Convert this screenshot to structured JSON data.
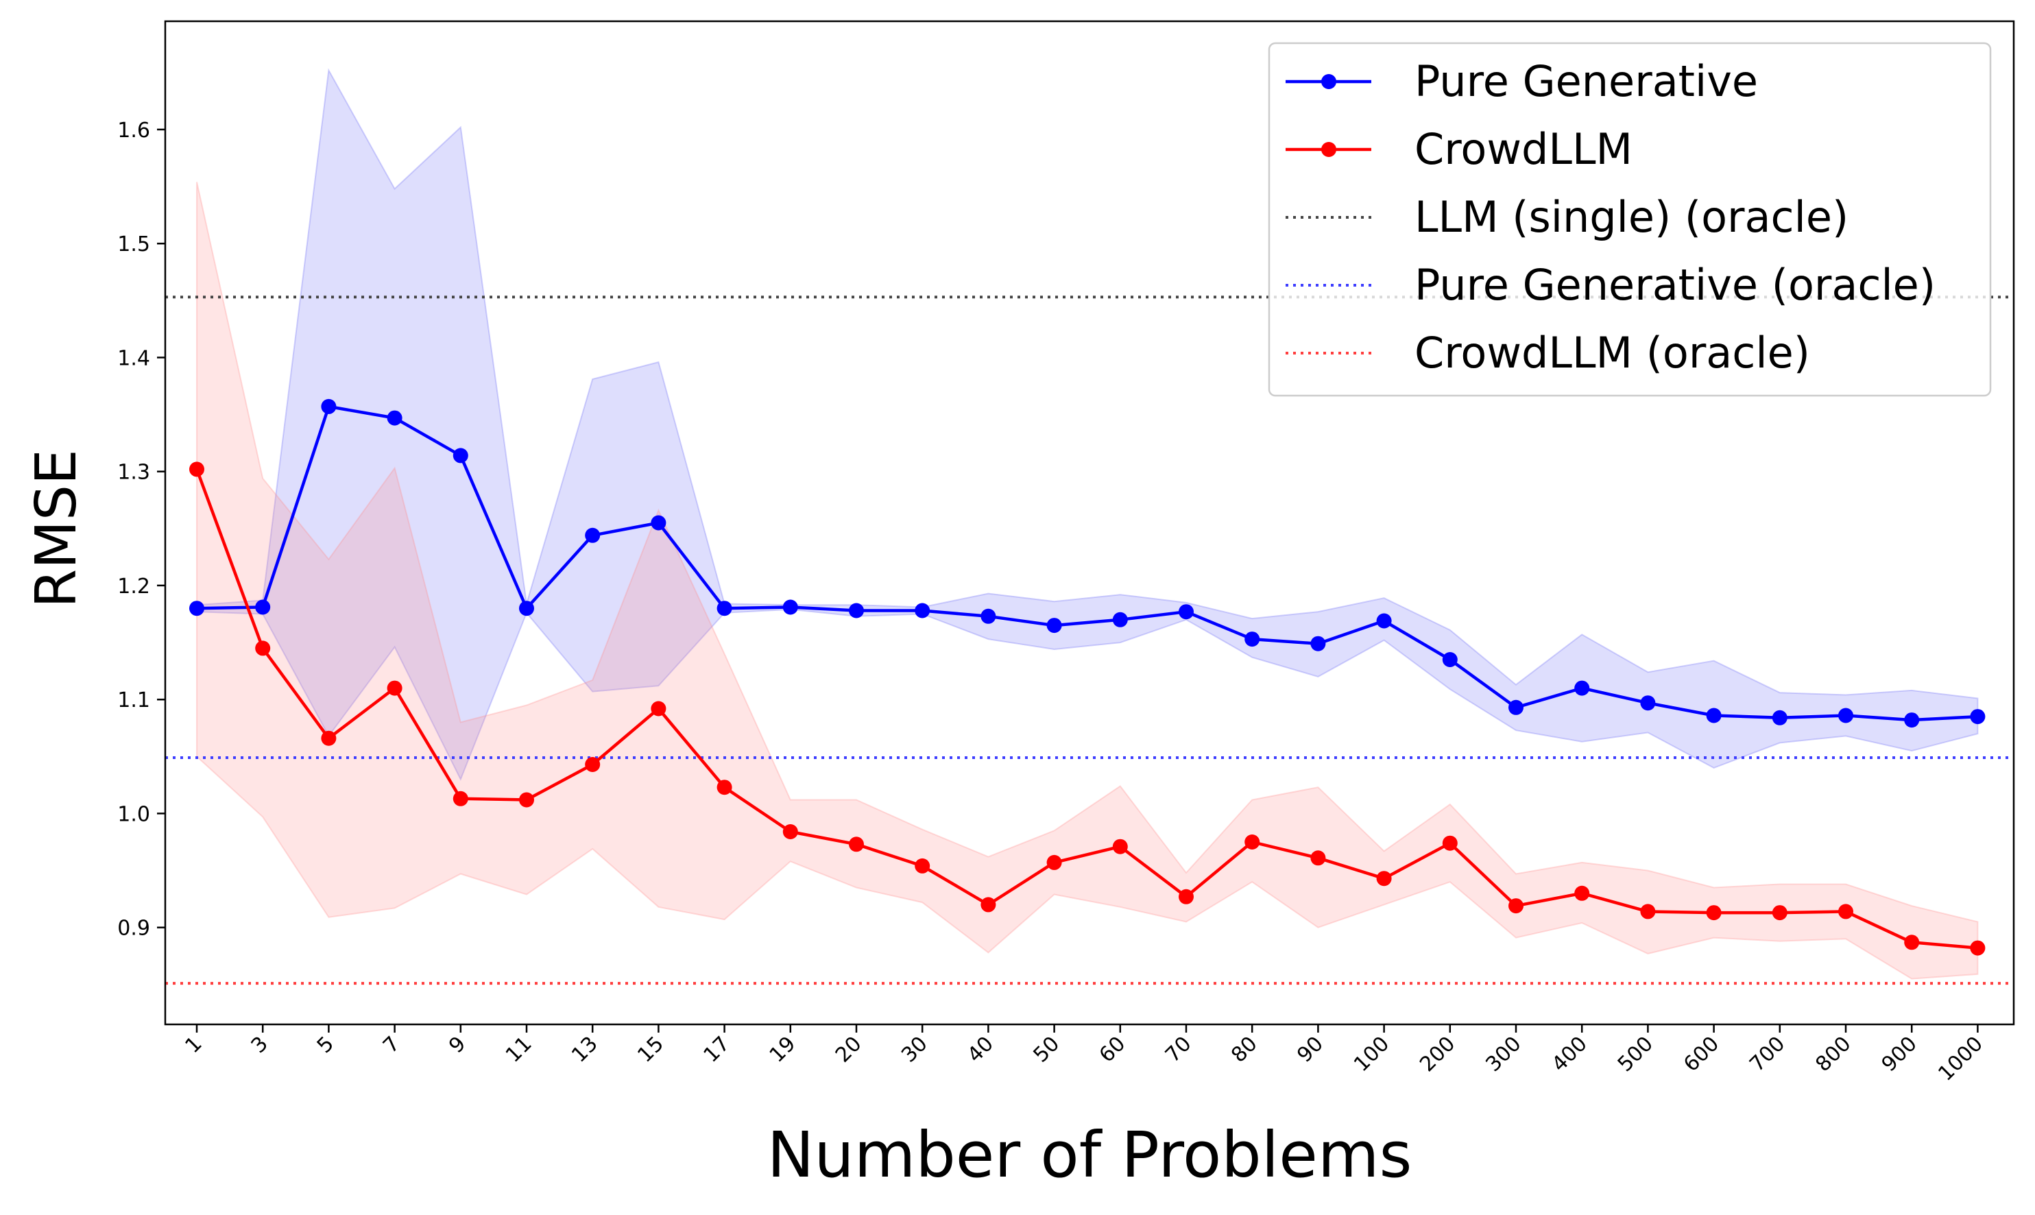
{
  "chart_data": {
    "type": "line",
    "title": "",
    "xlabel": "Number of Problems",
    "ylabel": "RMSE",
    "ylim": [
      0.815,
      1.695
    ],
    "yticks": [
      0.9,
      1.0,
      1.1,
      1.2,
      1.3,
      1.4,
      1.5,
      1.6
    ],
    "ytick_labels": [
      "0.9",
      "1.0",
      "1.1",
      "1.2",
      "1.3",
      "1.4",
      "1.5",
      "1.6"
    ],
    "categories": [
      "1",
      "3",
      "5",
      "7",
      "9",
      "11",
      "13",
      "15",
      "17",
      "19",
      "20",
      "30",
      "40",
      "50",
      "60",
      "70",
      "80",
      "90",
      "100",
      "200",
      "300",
      "400",
      "500",
      "600",
      "700",
      "800",
      "900",
      "1000"
    ],
    "grid": false,
    "legend_position": "top-right",
    "series": [
      {
        "name": "Pure Generative",
        "color": "#0000ff",
        "band_color": "#6a6af5",
        "values": [
          1.18,
          1.181,
          1.357,
          1.347,
          1.314,
          1.18,
          1.244,
          1.255,
          1.18,
          1.181,
          1.178,
          1.178,
          1.173,
          1.165,
          1.17,
          1.177,
          1.153,
          1.149,
          1.169,
          1.135,
          1.093,
          1.11,
          1.097,
          1.086,
          1.084,
          1.086,
          1.082,
          1.085
        ],
        "lower": [
          1.177,
          1.175,
          1.068,
          1.146,
          1.03,
          1.176,
          1.107,
          1.112,
          1.176,
          1.179,
          1.173,
          1.175,
          1.153,
          1.144,
          1.15,
          1.17,
          1.137,
          1.12,
          1.152,
          1.109,
          1.073,
          1.063,
          1.071,
          1.04,
          1.062,
          1.068,
          1.055,
          1.07
        ],
        "upper": [
          1.183,
          1.187,
          1.652,
          1.548,
          1.602,
          1.184,
          1.381,
          1.396,
          1.184,
          1.183,
          1.183,
          1.181,
          1.193,
          1.186,
          1.192,
          1.185,
          1.171,
          1.177,
          1.189,
          1.161,
          1.113,
          1.157,
          1.124,
          1.134,
          1.106,
          1.104,
          1.108,
          1.101
        ]
      },
      {
        "name": "CrowdLLM",
        "color": "#ff0000",
        "band_color": "#ff8a8a",
        "values": [
          1.302,
          1.145,
          1.066,
          1.11,
          1.013,
          1.012,
          1.043,
          1.092,
          1.023,
          0.984,
          0.973,
          0.954,
          0.92,
          0.957,
          0.971,
          0.927,
          0.975,
          0.961,
          0.943,
          0.974,
          0.919,
          0.93,
          0.914,
          0.913,
          0.913,
          0.914,
          0.887,
          0.882
        ],
        "lower": [
          1.05,
          0.997,
          0.909,
          0.917,
          0.947,
          0.929,
          0.969,
          0.918,
          0.907,
          0.958,
          0.935,
          0.922,
          0.878,
          0.929,
          0.918,
          0.905,
          0.94,
          0.9,
          0.92,
          0.94,
          0.891,
          0.904,
          0.877,
          0.891,
          0.888,
          0.89,
          0.855,
          0.859
        ],
        "upper": [
          1.554,
          1.294,
          1.223,
          1.303,
          1.08,
          1.095,
          1.117,
          1.266,
          1.14,
          1.012,
          1.012,
          0.986,
          0.962,
          0.985,
          1.024,
          0.948,
          1.012,
          1.023,
          0.967,
          1.008,
          0.947,
          0.957,
          0.95,
          0.935,
          0.938,
          0.938,
          0.919,
          0.905
        ]
      }
    ],
    "reference_lines": [
      {
        "name": "LLM (single) (oracle)",
        "value": 1.453,
        "color": "#444444"
      },
      {
        "name": "Pure Generative (oracle)",
        "value": 1.049,
        "color": "#3d3dff"
      },
      {
        "name": "CrowdLLM (oracle)",
        "value": 0.851,
        "color": "#ff3d3d"
      }
    ]
  }
}
